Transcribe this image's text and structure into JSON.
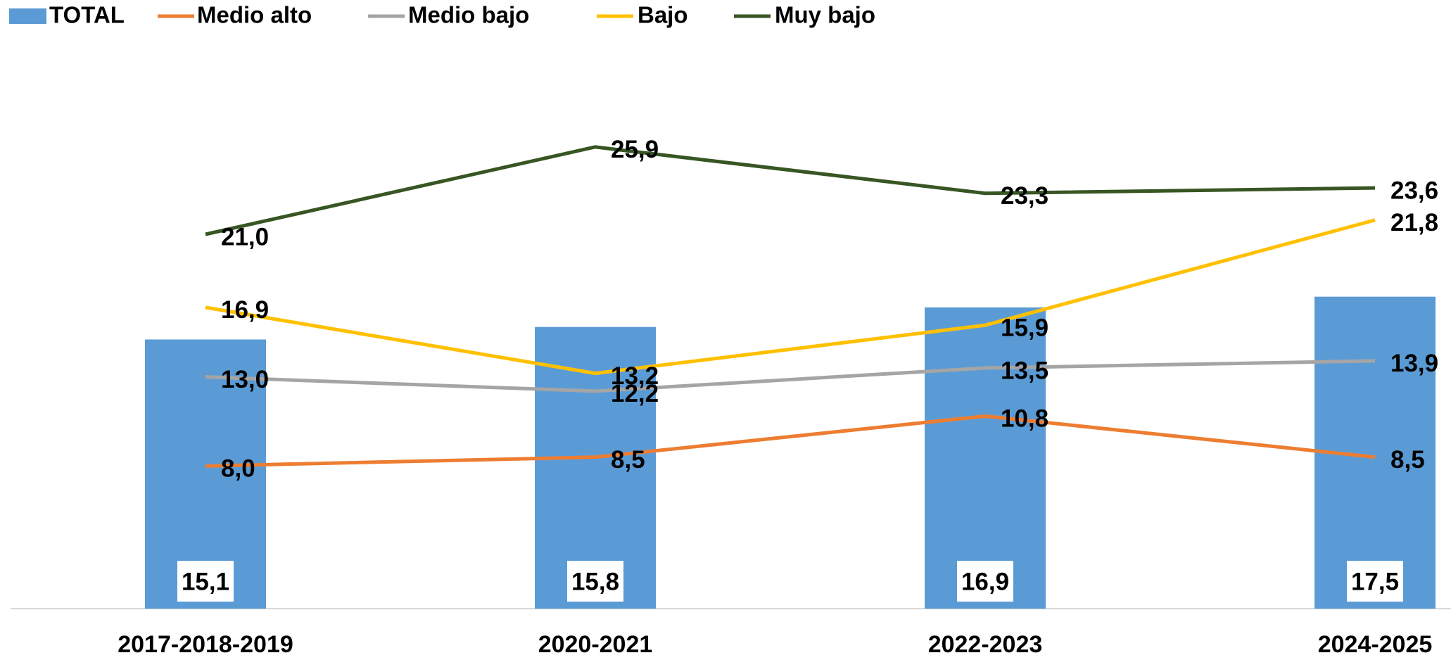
{
  "chart_data": {
    "type": "combo",
    "categories": [
      "2017-2018-2019",
      "2020-2021",
      "2022-2023",
      "2024-2025"
    ],
    "ylim": [
      0,
      30
    ],
    "series": [
      {
        "name": "TOTAL",
        "type": "bar",
        "color": "#5b9bd5",
        "values": [
          15.1,
          15.8,
          16.9,
          17.5
        ],
        "value_labels": [
          "15,1",
          "15,8",
          "16,9",
          "17,5"
        ]
      },
      {
        "name": "Medio alto",
        "type": "line",
        "color": "#ed7d31",
        "values": [
          8.0,
          8.5,
          10.8,
          8.5
        ],
        "value_labels": [
          "8,0",
          "8,5",
          "10,8",
          "8,5"
        ]
      },
      {
        "name": "Medio bajo",
        "type": "line",
        "color": "#a5a5a5",
        "values": [
          13.0,
          12.2,
          13.5,
          13.9
        ],
        "value_labels": [
          "13,0",
          "12,2",
          "13,5",
          "13,9"
        ]
      },
      {
        "name": "Bajo",
        "type": "line",
        "color": "#ffc000",
        "values": [
          16.9,
          13.2,
          15.9,
          21.8
        ],
        "value_labels": [
          "16,9",
          "13,2",
          "15,9",
          "21,8"
        ]
      },
      {
        "name": "Muy bajo",
        "type": "line",
        "color": "#375623",
        "values": [
          21.0,
          25.9,
          23.3,
          23.6
        ],
        "value_labels": [
          "21,0",
          "25,9",
          "23,3",
          "23,6"
        ]
      }
    ]
  }
}
